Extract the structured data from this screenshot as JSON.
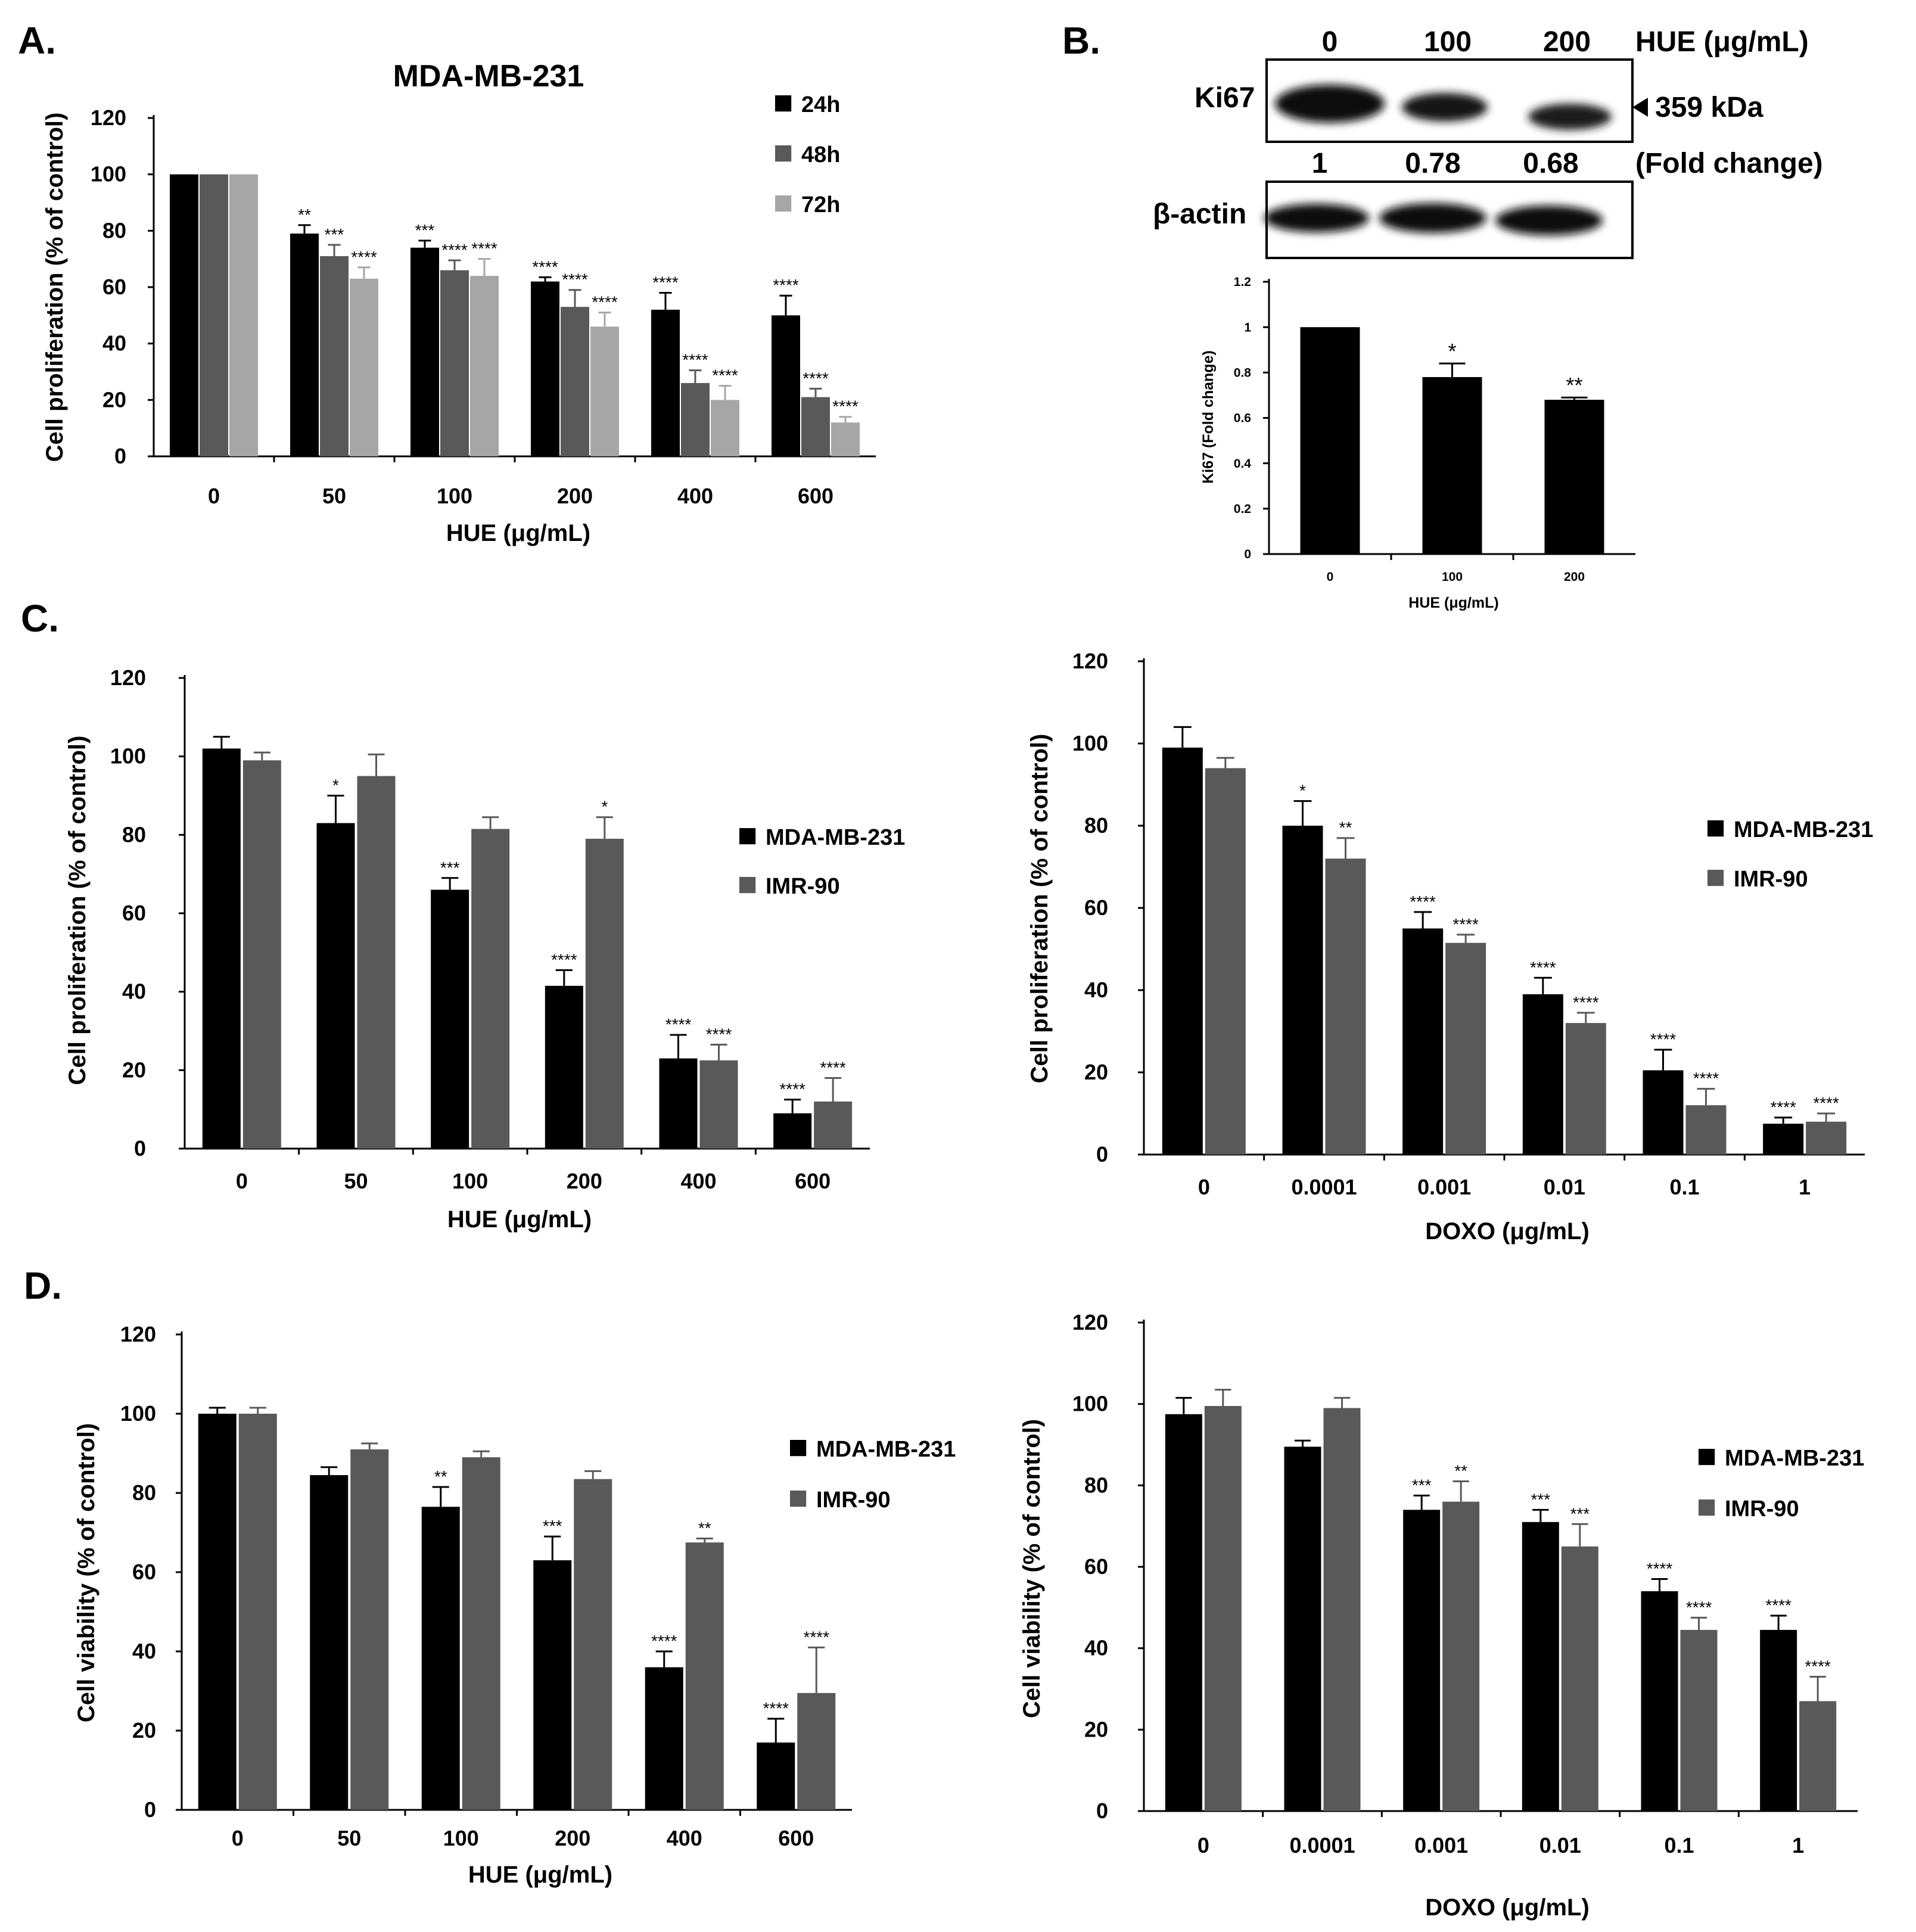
{
  "colors": {
    "c24h": "#000000",
    "c48h": "#595959",
    "c72h": "#a6a6a6",
    "mda": "#000000",
    "imr": "#595959",
    "axis": "#000000"
  },
  "chart_data": [
    {
      "id": "A",
      "panel_label": "A.",
      "type": "bar",
      "title": "MDA-MB-231",
      "xlabel": "HUE (μg/mL)",
      "ylabel": "Cell proliferation (% of control)",
      "ylim": [
        0,
        120
      ],
      "yticks": [
        "0",
        "20",
        "40",
        "60",
        "80",
        "100",
        "120"
      ],
      "categories": [
        "0",
        "50",
        "100",
        "200",
        "400",
        "600"
      ],
      "legend_position": "top-right",
      "series": [
        {
          "name": "24h",
          "color_key": "c24h",
          "values": [
            100,
            79,
            74,
            62,
            52,
            50
          ],
          "errors": [
            0,
            3,
            2.5,
            1.5,
            6,
            7
          ],
          "sig": [
            "",
            "**",
            "***",
            "****",
            "****",
            "****"
          ]
        },
        {
          "name": "48h",
          "color_key": "c48h",
          "values": [
            100,
            71,
            66,
            53,
            26,
            21
          ],
          "errors": [
            0,
            4,
            3.5,
            6,
            4.5,
            3
          ],
          "sig": [
            "",
            "***",
            "****",
            "****",
            "****",
            "****"
          ]
        },
        {
          "name": "72h",
          "color_key": "c72h",
          "values": [
            100,
            63,
            64,
            46,
            20,
            12
          ],
          "errors": [
            0,
            4,
            6,
            5,
            5,
            2
          ],
          "sig": [
            "",
            "****",
            "****",
            "****",
            "****",
            "****"
          ]
        }
      ]
    },
    {
      "id": "B",
      "panel_label": "B.",
      "type": "bar",
      "title": "",
      "xlabel": "HUE (μg/mL)",
      "ylabel": "Ki67  (Fold change)",
      "ylim": [
        0,
        1.2
      ],
      "yticks": [
        "0",
        "0.2",
        "0.4",
        "0.6",
        "0.8",
        "1",
        "1.2"
      ],
      "categories": [
        "0",
        "100",
        "200"
      ],
      "series": [
        {
          "name": "Ki67",
          "color_key": "mda",
          "values": [
            1,
            0.78,
            0.68
          ],
          "errors": [
            0,
            0.06,
            0.01
          ],
          "sig": [
            "",
            "*",
            "**"
          ]
        }
      ]
    },
    {
      "id": "C1",
      "panel_label": "C.",
      "type": "bar",
      "title": "",
      "xlabel": "HUE (μg/mL)",
      "ylabel": "Cell proliferation (% of control)",
      "ylim": [
        0,
        120
      ],
      "yticks": [
        "0",
        "20",
        "40",
        "60",
        "80",
        "100",
        "120"
      ],
      "categories": [
        "0",
        "50",
        "100",
        "200",
        "400",
        "600"
      ],
      "legend_position": "right",
      "series": [
        {
          "name": "MDA-MB-231",
          "color_key": "mda",
          "values": [
            102,
            83,
            66,
            41.5,
            23,
            9
          ],
          "errors": [
            3,
            7,
            3,
            4,
            6,
            3.5
          ],
          "sig": [
            "",
            "*",
            "***",
            "****",
            "****",
            "****"
          ]
        },
        {
          "name": "IMR-90",
          "color_key": "imr",
          "values": [
            99,
            95,
            81.5,
            79,
            22.5,
            12
          ],
          "errors": [
            2,
            5.5,
            3,
            5.5,
            4,
            6
          ],
          "sig": [
            "",
            "",
            "",
            "*",
            "****",
            "****"
          ]
        }
      ]
    },
    {
      "id": "C2",
      "panel_label": "",
      "type": "bar",
      "title": "",
      "xlabel": "DOXO (μg/mL)",
      "ylabel": "Cell proliferation (% of control)",
      "ylim": [
        0,
        120
      ],
      "yticks": [
        "0",
        "20",
        "40",
        "60",
        "80",
        "100",
        "120"
      ],
      "categories": [
        "0",
        "0.0001",
        "0.001",
        "0.01",
        "0.1",
        "1"
      ],
      "legend_position": "right",
      "series": [
        {
          "name": "MDA-MB-231",
          "color_key": "mda",
          "values": [
            99,
            80,
            55,
            39,
            20.5,
            7.5
          ],
          "errors": [
            5,
            6,
            4,
            4,
            5,
            1.5
          ],
          "sig": [
            "",
            "*",
            "****",
            "****",
            "****",
            "****"
          ]
        },
        {
          "name": "IMR-90",
          "color_key": "imr",
          "values": [
            94,
            72,
            51.5,
            32,
            12,
            8
          ],
          "errors": [
            2.5,
            5,
            2,
            2.5,
            4,
            2
          ],
          "sig": [
            "",
            "**",
            "****",
            "****",
            "****",
            "****"
          ]
        }
      ]
    },
    {
      "id": "D1",
      "panel_label": "D.",
      "type": "bar",
      "title": "",
      "xlabel": "HUE (μg/mL)",
      "ylabel": "Cell viability (% of control)",
      "ylim": [
        0,
        120
      ],
      "yticks": [
        "0",
        "20",
        "40",
        "60",
        "80",
        "100",
        "120"
      ],
      "categories": [
        "0",
        "50",
        "100",
        "200",
        "400",
        "600"
      ],
      "legend_position": "right",
      "series": [
        {
          "name": "MDA-MB-231",
          "color_key": "mda",
          "values": [
            100,
            84.5,
            76.5,
            63,
            36,
            17
          ],
          "errors": [
            1.5,
            2,
            5,
            6,
            4,
            6
          ],
          "sig": [
            "",
            "",
            "**",
            "***",
            "****",
            "****"
          ]
        },
        {
          "name": "IMR-90",
          "color_key": "imr",
          "values": [
            100,
            91,
            89,
            83.5,
            67.5,
            29.5
          ],
          "errors": [
            1.5,
            1.5,
            1.5,
            2,
            1,
            11.5
          ],
          "sig": [
            "",
            "",
            "",
            "",
            "**",
            "****"
          ]
        }
      ]
    },
    {
      "id": "D2",
      "panel_label": "",
      "type": "bar",
      "title": "",
      "xlabel": "DOXO (μg/mL)",
      "ylabel": "Cell viability (% of control)",
      "ylim": [
        0,
        120
      ],
      "yticks": [
        "0",
        "20",
        "40",
        "60",
        "80",
        "100",
        "120"
      ],
      "categories": [
        "0",
        "0.0001",
        "0.001",
        "0.01",
        "0.1",
        "1"
      ],
      "legend_position": "right",
      "series": [
        {
          "name": "MDA-MB-231",
          "color_key": "mda",
          "values": [
            97.5,
            89.5,
            74,
            71,
            54,
            44.5
          ],
          "errors": [
            4,
            1.5,
            3.5,
            3,
            3,
            3.5
          ],
          "sig": [
            "",
            "",
            "***",
            "***",
            "****",
            "****"
          ]
        },
        {
          "name": "IMR-90",
          "color_key": "imr",
          "values": [
            99.5,
            99,
            76,
            65,
            44.5,
            27
          ],
          "errors": [
            4,
            2.5,
            5,
            5.5,
            3,
            6
          ],
          "sig": [
            "",
            "",
            "**",
            "***",
            "****",
            "****"
          ]
        }
      ]
    }
  ],
  "blot": {
    "concentrations": [
      "0",
      "100",
      "200"
    ],
    "unit_label": "HUE (μg/mL)",
    "ki67_label": "Ki67",
    "size_marker": "359 kDa",
    "fold_values": [
      "1",
      "0.78",
      "0.68"
    ],
    "fold_label": "(Fold change)",
    "actin_label": "β-actin"
  }
}
